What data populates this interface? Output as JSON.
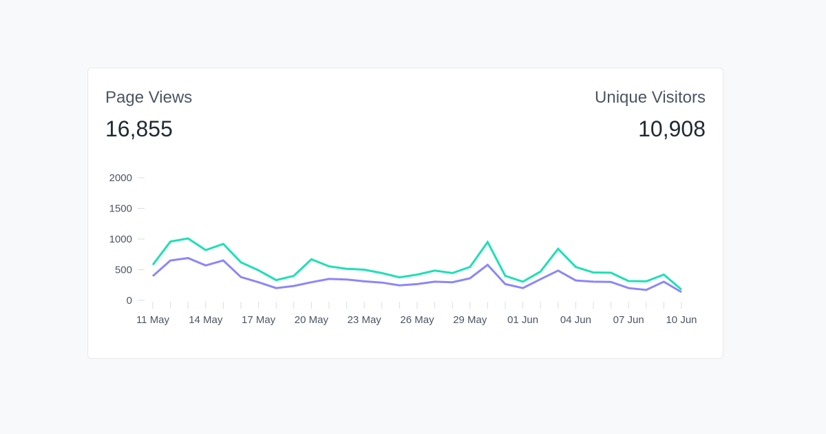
{
  "metrics": {
    "page_views": {
      "label": "Page Views",
      "value": "16,855"
    },
    "unique_visitors": {
      "label": "Unique Visitors",
      "value": "10,908"
    }
  },
  "colors": {
    "page_views": "#1de0b4",
    "unique_visitors": "#8b86fb",
    "axis": "#d9dde3",
    "text": "#4b5563"
  },
  "chart_data": {
    "type": "line",
    "x": [
      "11 May",
      "12 May",
      "13 May",
      "14 May",
      "15 May",
      "16 May",
      "17 May",
      "18 May",
      "19 May",
      "20 May",
      "21 May",
      "22 May",
      "23 May",
      "24 May",
      "25 May",
      "26 May",
      "27 May",
      "28 May",
      "29 May",
      "30 May",
      "31 May",
      "01 Jun",
      "02 Jun",
      "03 Jun",
      "04 Jun",
      "05 Jun",
      "06 Jun",
      "07 Jun",
      "08 Jun",
      "09 Jun",
      "10 Jun"
    ],
    "x_tick_labels": [
      "11 May",
      "14 May",
      "17 May",
      "20 May",
      "23 May",
      "26 May",
      "29 May",
      "01 Jun",
      "04 Jun",
      "07 Jun",
      "10 Jun"
    ],
    "y_ticks": [
      "2000",
      "1500",
      "1000",
      "500",
      "0"
    ],
    "ylim": [
      0,
      2000
    ],
    "series": [
      {
        "name": "Page Views",
        "values": [
          580,
          960,
          1010,
          820,
          920,
          620,
          490,
          330,
          400,
          670,
          555,
          515,
          500,
          445,
          375,
          420,
          485,
          445,
          545,
          950,
          400,
          305,
          470,
          840,
          545,
          455,
          450,
          315,
          310,
          420,
          175
        ]
      },
      {
        "name": "Unique Visitors",
        "values": [
          395,
          650,
          690,
          570,
          650,
          380,
          295,
          200,
          235,
          295,
          350,
          340,
          310,
          290,
          245,
          265,
          305,
          295,
          360,
          580,
          265,
          200,
          345,
          485,
          325,
          305,
          300,
          200,
          170,
          305,
          135
        ]
      }
    ]
  }
}
